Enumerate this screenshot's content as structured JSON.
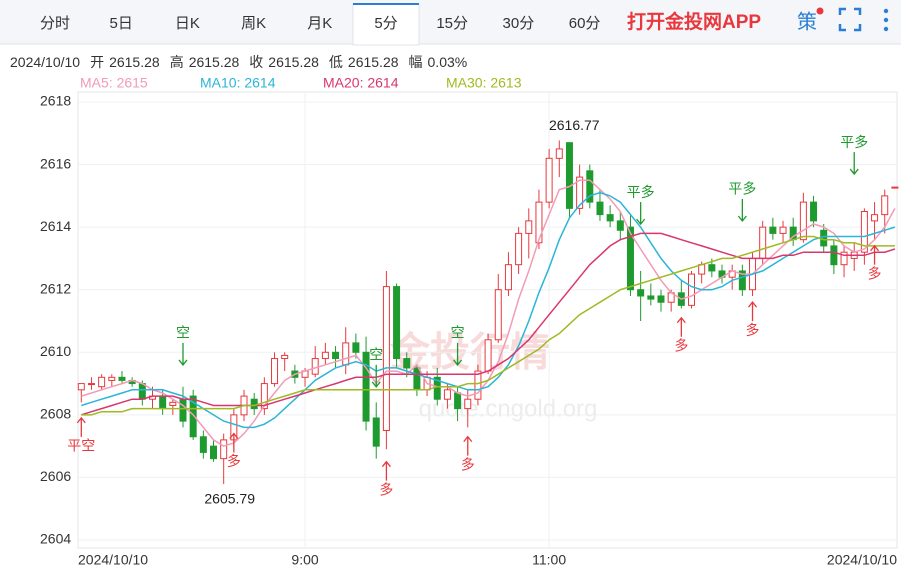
{
  "toolbar": {
    "tabs": [
      "分时",
      "5日",
      "日K",
      "周K",
      "月K",
      "5分",
      "15分",
      "30分",
      "60分"
    ],
    "active_tab": 5,
    "promo": "打开金投网APP",
    "strategy": "策"
  },
  "info": {
    "date": "2024/10/10",
    "items": [
      {
        "label": "开",
        "value": "2615.28"
      },
      {
        "label": "高",
        "value": "2615.28"
      },
      {
        "label": "收",
        "value": "2615.28"
      },
      {
        "label": "低",
        "value": "2615.28"
      },
      {
        "label": "幅",
        "value": "0.03%"
      }
    ]
  },
  "chart_data": {
    "type": "candlestick",
    "watermark": [
      "金投行情",
      "quote.cngold.org"
    ],
    "categories": [
      "2024/10/10",
      null,
      null,
      null,
      null,
      null,
      null,
      null,
      null,
      null,
      null,
      null,
      null,
      null,
      null,
      null,
      null,
      null,
      null,
      null,
      null,
      null,
      "9:00",
      null,
      null,
      null,
      null,
      null,
      null,
      null,
      null,
      null,
      null,
      null,
      null,
      null,
      null,
      null,
      null,
      null,
      null,
      null,
      null,
      null,
      null,
      null,
      "11:00",
      null,
      null,
      null,
      null,
      null,
      null,
      null,
      null,
      null,
      null,
      null,
      null,
      null,
      null,
      null,
      null,
      null,
      null,
      null,
      null,
      null,
      null,
      null,
      null,
      null,
      null,
      null,
      null,
      null,
      null,
      null,
      null,
      null,
      "2024/10/10"
    ],
    "open": [
      2608.8,
      2609.0,
      2608.9,
      2609.1,
      2609.2,
      2609.1,
      2609.0,
      2608.5,
      2608.6,
      2608.3,
      2608.5,
      2608.6,
      2607.3,
      2607.0,
      2606.6,
      2607.2,
      2608.0,
      2608.5,
      2608.2,
      2609.0,
      2609.8,
      2609.4,
      2609.2,
      2609.3,
      2609.8,
      2610.0,
      2609.6,
      2610.3,
      2610.0,
      2607.9,
      2607.5,
      2612.1,
      2609.8,
      2609.5,
      2608.8,
      2609.2,
      2608.5,
      2608.7,
      2608.2,
      2608.5,
      2609.4,
      2610.4,
      2612.0,
      2612.8,
      2613.8,
      2613.5,
      2614.8,
      2616.2,
      2616.7,
      2614.6,
      2615.8,
      2614.8,
      2614.4,
      2614.2,
      2614.0,
      2612.0,
      2611.8,
      2611.8,
      2611.6,
      2611.9,
      2611.5,
      2612.5,
      2612.8,
      2612.6,
      2612.4,
      2612.6,
      2612.0,
      2613.0,
      2614.0,
      2613.8,
      2614.0,
      2613.6,
      2614.8,
      2613.9,
      2613.4,
      2612.8,
      2613.0,
      2613.2,
      2614.2,
      2614.4,
      2615.28
    ],
    "high": [
      2609.0,
      2609.2,
      2609.3,
      2609.3,
      2609.4,
      2609.2,
      2609.1,
      2608.9,
      2608.8,
      2608.5,
      2608.9,
      2608.8,
      2607.5,
      2607.2,
      2607.4,
      2608.2,
      2608.8,
      2608.7,
      2609.2,
      2610.0,
      2610.0,
      2609.6,
      2609.5,
      2610.2,
      2610.3,
      2610.2,
      2610.8,
      2610.6,
      2610.5,
      2608.4,
      2612.6,
      2612.2,
      2610.0,
      2609.6,
      2609.4,
      2609.5,
      2609.0,
      2608.9,
      2608.8,
      2609.6,
      2610.6,
      2612.5,
      2613.2,
      2614.0,
      2614.6,
      2615.2,
      2616.5,
      2616.77,
      2616.7,
      2616.0,
      2616.0,
      2615.2,
      2614.7,
      2614.5,
      2614.4,
      2612.6,
      2612.2,
      2612.0,
      2612.0,
      2612.3,
      2612.6,
      2612.9,
      2613.0,
      2612.8,
      2612.8,
      2612.8,
      2613.2,
      2614.2,
      2614.3,
      2614.2,
      2614.3,
      2615.1,
      2615.0,
      2614.1,
      2613.6,
      2613.4,
      2613.5,
      2614.6,
      2614.8,
      2615.2,
      2615.28
    ],
    "low": [
      2608.4,
      2608.8,
      2608.8,
      2608.9,
      2609.0,
      2608.9,
      2608.3,
      2608.2,
      2608.0,
      2608.0,
      2607.6,
      2607.2,
      2606.6,
      2606.5,
      2605.79,
      2607.0,
      2607.8,
      2608.0,
      2608.0,
      2608.9,
      2609.4,
      2609.0,
      2608.9,
      2609.2,
      2609.6,
      2609.5,
      2609.3,
      2609.8,
      2607.5,
      2606.6,
      2606.9,
      2609.5,
      2609.2,
      2608.6,
      2608.6,
      2608.3,
      2608.2,
      2607.8,
      2607.6,
      2608.3,
      2609.3,
      2610.3,
      2611.8,
      2612.5,
      2613.0,
      2613.3,
      2614.6,
      2615.6,
      2614.3,
      2614.4,
      2614.6,
      2614.2,
      2614.0,
      2613.6,
      2611.8,
      2611.0,
      2611.5,
      2611.3,
      2611.3,
      2611.4,
      2611.4,
      2612.2,
      2612.4,
      2612.2,
      2612.0,
      2611.8,
      2611.8,
      2612.8,
      2613.6,
      2613.5,
      2613.4,
      2613.5,
      2614.0,
      2613.2,
      2612.5,
      2612.4,
      2612.6,
      2612.8,
      2613.6,
      2613.8,
      2615.28
    ],
    "close": [
      2609.0,
      2609.0,
      2609.2,
      2609.2,
      2609.1,
      2609.0,
      2608.5,
      2608.6,
      2608.2,
      2608.4,
      2607.8,
      2607.3,
      2606.8,
      2606.6,
      2607.2,
      2608.0,
      2608.6,
      2608.2,
      2609.0,
      2609.8,
      2609.9,
      2609.2,
      2609.4,
      2609.8,
      2610.0,
      2609.8,
      2610.3,
      2610.0,
      2607.8,
      2607.0,
      2612.1,
      2609.8,
      2609.5,
      2608.8,
      2609.2,
      2608.5,
      2608.8,
      2608.2,
      2608.5,
      2609.4,
      2610.4,
      2612.0,
      2612.8,
      2613.8,
      2614.2,
      2614.8,
      2616.2,
      2616.5,
      2614.6,
      2615.6,
      2614.8,
      2614.4,
      2614.2,
      2613.9,
      2612.0,
      2611.8,
      2611.7,
      2611.6,
      2611.9,
      2611.5,
      2612.5,
      2612.8,
      2612.6,
      2612.4,
      2612.6,
      2612.0,
      2613.0,
      2614.0,
      2613.8,
      2614.0,
      2613.6,
      2614.8,
      2614.2,
      2613.4,
      2612.8,
      2613.2,
      2613.2,
      2614.5,
      2614.4,
      2615.0,
      2615.28
    ],
    "up_color": "#e8383d",
    "down_color": "#1f9a2f",
    "series": [
      {
        "legend": "MA5: 2615",
        "color": "#f29bb6",
        "values": [
          2608.6,
          2608.7,
          2608.8,
          2608.9,
          2609.0,
          2609.1,
          2609.0,
          2608.8,
          2608.7,
          2608.5,
          2608.3,
          2608.0,
          2607.6,
          2607.2,
          2607.0,
          2607.1,
          2607.4,
          2607.8,
          2608.3,
          2608.7,
          2609.1,
          2609.3,
          2609.4,
          2609.5,
          2609.6,
          2609.7,
          2609.8,
          2609.9,
          2609.5,
          2609.0,
          2609.4,
          2609.4,
          2609.3,
          2609.6,
          2609.0,
          2608.9,
          2608.9,
          2608.7,
          2608.6,
          2608.7,
          2609.1,
          2609.7,
          2610.6,
          2611.7,
          2612.6,
          2613.6,
          2614.4,
          2615.2,
          2615.3,
          2615.5,
          2615.5,
          2615.2,
          2614.9,
          2614.5,
          2613.8,
          2613.3,
          2612.8,
          2612.3,
          2611.9,
          2611.7,
          2611.8,
          2612.0,
          2612.2,
          2612.4,
          2612.6,
          2612.5,
          2612.5,
          2612.8,
          2613.1,
          2613.4,
          2613.7,
          2613.9,
          2614.1,
          2614.0,
          2613.8,
          2613.4,
          2613.2,
          2613.3,
          2613.6,
          2614.0,
          2614.6
        ]
      },
      {
        "legend": "MA10: 2614",
        "color": "#2bb5d8",
        "values": [
          2608.3,
          2608.4,
          2608.5,
          2608.6,
          2608.7,
          2608.8,
          2608.8,
          2608.8,
          2608.8,
          2608.7,
          2608.6,
          2608.4,
          2608.2,
          2608.0,
          2607.8,
          2607.7,
          2607.6,
          2607.6,
          2607.7,
          2607.9,
          2608.2,
          2608.5,
          2608.8,
          2609.1,
          2609.3,
          2609.5,
          2609.6,
          2609.7,
          2609.6,
          2609.4,
          2609.5,
          2609.5,
          2609.4,
          2609.3,
          2609.2,
          2609.1,
          2609.0,
          2608.9,
          2608.8,
          2608.8,
          2608.9,
          2609.2,
          2609.6,
          2610.2,
          2611.0,
          2611.9,
          2612.7,
          2613.6,
          2614.3,
          2614.7,
          2615.0,
          2615.1,
          2615.0,
          2614.8,
          2614.4,
          2614.0,
          2613.5,
          2613.0,
          2612.6,
          2612.3,
          2612.1,
          2612.0,
          2612.0,
          2612.1,
          2612.3,
          2612.4,
          2612.5,
          2612.6,
          2612.8,
          2613.0,
          2613.2,
          2613.4,
          2613.6,
          2613.7,
          2613.7,
          2613.7,
          2613.7,
          2613.7,
          2613.8,
          2613.9,
          2614.0
        ]
      },
      {
        "legend": "MA20: 2614",
        "color": "#d9366e",
        "values": [
          2608.0,
          2608.1,
          2608.2,
          2608.3,
          2608.4,
          2608.5,
          2608.5,
          2608.6,
          2608.6,
          2608.6,
          2608.5,
          2608.5,
          2608.4,
          2608.3,
          2608.3,
          2608.3,
          2608.3,
          2608.3,
          2608.3,
          2608.4,
          2608.5,
          2608.6,
          2608.7,
          2608.8,
          2608.9,
          2609.0,
          2609.1,
          2609.2,
          2609.2,
          2609.2,
          2609.3,
          2609.3,
          2609.3,
          2609.3,
          2609.3,
          2609.3,
          2609.3,
          2609.3,
          2609.3,
          2609.3,
          2609.4,
          2609.6,
          2609.8,
          2610.1,
          2610.4,
          2610.8,
          2611.2,
          2611.6,
          2612.0,
          2612.4,
          2612.8,
          2613.1,
          2613.4,
          2613.6,
          2613.7,
          2613.8,
          2613.8,
          2613.8,
          2613.7,
          2613.6,
          2613.5,
          2613.4,
          2613.3,
          2613.2,
          2613.1,
          2613.0,
          2613.0,
          2613.0,
          2613.0,
          2613.1,
          2613.1,
          2613.2,
          2613.2,
          2613.2,
          2613.2,
          2613.1,
          2613.1,
          2613.1,
          2613.2,
          2613.2,
          2613.3
        ]
      },
      {
        "legend": "MA30: 2613",
        "color": "#9fba22",
        "values": [
          2608.0,
          2608.0,
          2608.1,
          2608.1,
          2608.1,
          2608.2,
          2608.2,
          2608.2,
          2608.2,
          2608.2,
          2608.2,
          2608.2,
          2608.2,
          2608.2,
          2608.2,
          2608.2,
          2608.3,
          2608.3,
          2608.4,
          2608.5,
          2608.6,
          2608.7,
          2608.8,
          2608.8,
          2608.8,
          2608.8,
          2608.8,
          2608.8,
          2608.8,
          2608.8,
          2608.8,
          2608.8,
          2608.8,
          2608.8,
          2608.8,
          2608.9,
          2608.9,
          2608.9,
          2609.0,
          2609.0,
          2609.1,
          2609.3,
          2609.5,
          2609.7,
          2609.9,
          2610.1,
          2610.4,
          2610.6,
          2610.9,
          2611.2,
          2611.4,
          2611.6,
          2611.8,
          2612.0,
          2612.1,
          2612.2,
          2612.3,
          2612.4,
          2612.5,
          2612.6,
          2612.7,
          2612.8,
          2612.9,
          2613.0,
          2613.0,
          2613.1,
          2613.2,
          2613.3,
          2613.4,
          2613.5,
          2613.6,
          2613.7,
          2613.7,
          2613.6,
          2613.6,
          2613.5,
          2613.5,
          2613.4,
          2613.4,
          2613.4,
          2613.4
        ]
      }
    ],
    "extremes": [
      {
        "index": 47,
        "value": 2616.77,
        "side": "above"
      },
      {
        "index": 14,
        "value": 2605.79,
        "side": "below"
      }
    ],
    "signals": [
      {
        "text": "平空",
        "x": 0,
        "y": 2608.0,
        "dir": "up",
        "color": "#e8383d"
      },
      {
        "text": "空",
        "x": 10,
        "y": 2609.5,
        "dir": "down",
        "color": "#1f9a2f"
      },
      {
        "text": "多",
        "x": 15,
        "y": 2607.5,
        "dir": "up",
        "color": "#e8383d"
      },
      {
        "text": "空",
        "x": 29,
        "y": 2608.8,
        "dir": "down",
        "color": "#1f9a2f"
      },
      {
        "text": "多",
        "x": 30,
        "y": 2606.6,
        "dir": "up",
        "color": "#e8383d"
      },
      {
        "text": "空",
        "x": 37,
        "y": 2609.5,
        "dir": "down",
        "color": "#1f9a2f"
      },
      {
        "text": "多",
        "x": 38,
        "y": 2607.4,
        "dir": "up",
        "color": "#e8383d"
      },
      {
        "text": "平多",
        "x": 55,
        "y": 2614.0,
        "dir": "down",
        "color": "#1f9a2f"
      },
      {
        "text": "多",
        "x": 59,
        "y": 2611.2,
        "dir": "up",
        "color": "#e8383d"
      },
      {
        "text": "平多",
        "x": 65,
        "y": 2614.1,
        "dir": "down",
        "color": "#1f9a2f"
      },
      {
        "text": "多",
        "x": 66,
        "y": 2611.7,
        "dir": "up",
        "color": "#e8383d"
      },
      {
        "text": "平多",
        "x": 76,
        "y": 2615.6,
        "dir": "down",
        "color": "#1f9a2f"
      },
      {
        "text": "多",
        "x": 78,
        "y": 2613.5,
        "dir": "up",
        "color": "#e8383d"
      }
    ],
    "ylim": [
      2604,
      2618
    ],
    "yticks": [
      2604,
      2606,
      2608,
      2610,
      2612,
      2614,
      2616,
      2618
    ],
    "grid": true
  }
}
